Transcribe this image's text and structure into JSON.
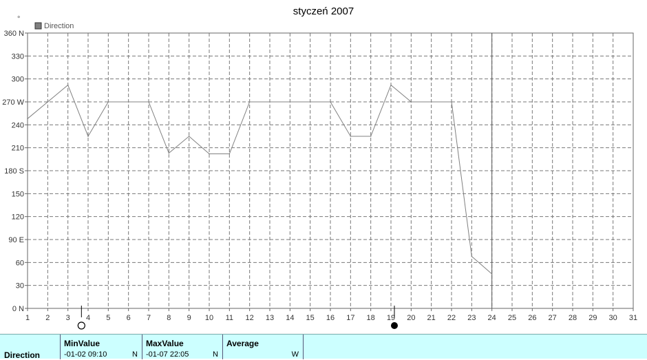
{
  "chart_data": {
    "type": "line",
    "title": "styczeń 2007",
    "y_unit_mark": "°",
    "legend": [
      {
        "label": "Direction",
        "color": "#808080"
      }
    ],
    "x": [
      1,
      2,
      3,
      4,
      5,
      6,
      7,
      8,
      9,
      10,
      11,
      12,
      13,
      14,
      15,
      16,
      17,
      18,
      19,
      20,
      21,
      22,
      23,
      24
    ],
    "series": [
      {
        "name": "Direction",
        "color": "#808080",
        "values": [
          248,
          270,
          292,
          225,
          270,
          270,
          270,
          203,
          225,
          202,
          202,
          270,
          270,
          270,
          270,
          270,
          225,
          225,
          292,
          270,
          270,
          270,
          68,
          45
        ]
      }
    ],
    "x_ticks": [
      "1",
      "2",
      "3",
      "4",
      "5",
      "6",
      "7",
      "8",
      "9",
      "10",
      "11",
      "12",
      "13",
      "14",
      "15",
      "16",
      "17",
      "18",
      "19",
      "20",
      "21",
      "22",
      "23",
      "24",
      "25",
      "26",
      "27",
      "28",
      "29",
      "30",
      "31"
    ],
    "xlim": [
      1,
      31
    ],
    "y_ticks": [
      {
        "value": 0,
        "label": "0 N"
      },
      {
        "value": 30,
        "label": "30"
      },
      {
        "value": 60,
        "label": "60"
      },
      {
        "value": 90,
        "label": "90 E"
      },
      {
        "value": 120,
        "label": "120"
      },
      {
        "value": 150,
        "label": "150"
      },
      {
        "value": 180,
        "label": "180 S"
      },
      {
        "value": 210,
        "label": "210"
      },
      {
        "value": 240,
        "label": "240"
      },
      {
        "value": 270,
        "label": "270 W"
      },
      {
        "value": 300,
        "label": "300"
      },
      {
        "value": 330,
        "label": "330"
      },
      {
        "value": 360,
        "label": "360 N"
      }
    ],
    "ylim": [
      0,
      360
    ],
    "grid": true,
    "vertical_marker_x": 24,
    "moon_phases": [
      {
        "x": 3.67,
        "phase": "full-moon-icon"
      },
      {
        "x": 19.17,
        "phase": "new-moon-icon"
      }
    ]
  },
  "stats": {
    "row_label": "Direction",
    "min": {
      "header": "MinValue",
      "time": "-01-02  09:10",
      "value": "N"
    },
    "max": {
      "header": "MaxValue",
      "time": "-01-07  22:05",
      "value": "N"
    },
    "avg": {
      "header": "Average",
      "time": "",
      "value": "W"
    }
  }
}
